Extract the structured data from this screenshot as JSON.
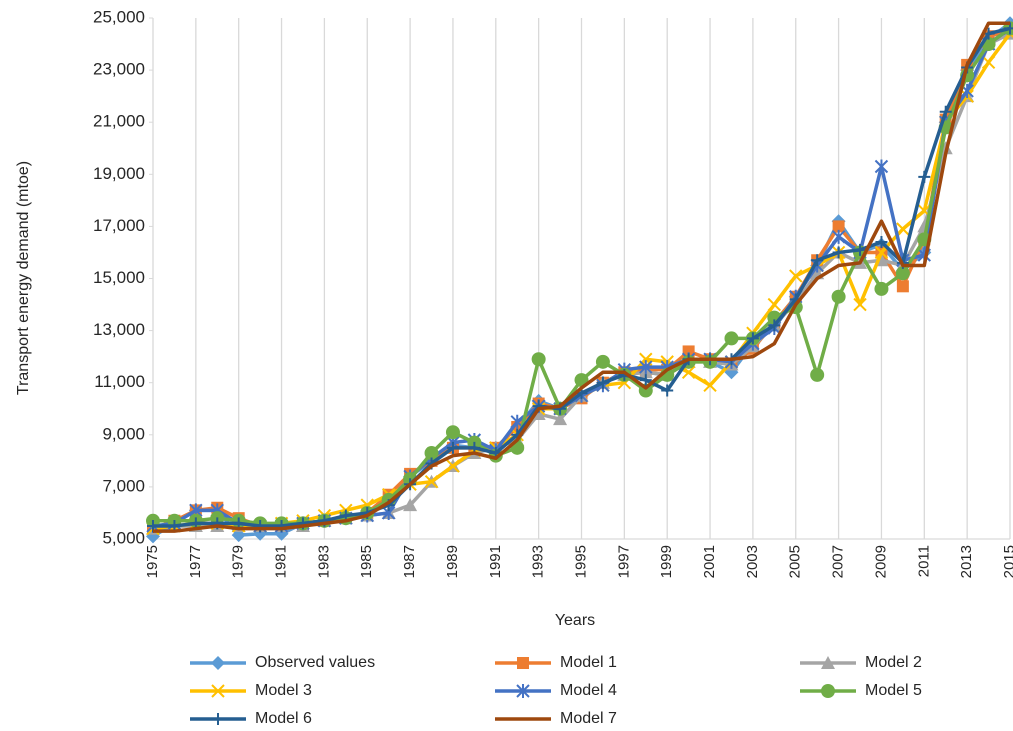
{
  "chart_data": {
    "type": "line",
    "x_label": "Years",
    "y_label": "Transport energy demand (mtoe)",
    "x": [
      1975,
      1976,
      1977,
      1978,
      1979,
      1980,
      1981,
      1982,
      1983,
      1984,
      1985,
      1986,
      1987,
      1988,
      1989,
      1990,
      1991,
      1992,
      1993,
      1994,
      1995,
      1996,
      1997,
      1998,
      1999,
      2000,
      2001,
      2002,
      2003,
      2004,
      2005,
      2006,
      2007,
      2008,
      2009,
      2010,
      2011,
      2012,
      2013,
      2014,
      2015
    ],
    "xlim": [
      1975,
      2015
    ],
    "xticks": [
      1975,
      1977,
      1979,
      1981,
      1983,
      1985,
      1987,
      1989,
      1991,
      1993,
      1995,
      1997,
      1999,
      2001,
      2003,
      2005,
      2007,
      2009,
      2011,
      2013,
      2015
    ],
    "ylim": [
      5000,
      25000
    ],
    "yticks": [
      {
        "value": 5000,
        "label": "5,000"
      },
      {
        "value": 7000,
        "label": "7,000"
      },
      {
        "value": 9000,
        "label": "9,000"
      },
      {
        "value": 11000,
        "label": "11,000"
      },
      {
        "value": 13000,
        "label": "13,000"
      },
      {
        "value": 15000,
        "label": "15,000"
      },
      {
        "value": 17000,
        "label": "17,000"
      },
      {
        "value": 19000,
        "label": "19,000"
      },
      {
        "value": 21000,
        "label": "21,000"
      },
      {
        "value": 23000,
        "label": "23,000"
      },
      {
        "value": 25000,
        "label": "25,000"
      }
    ],
    "grid": "x",
    "legend": "bottom",
    "series": [
      {
        "name": "Observed values",
        "color": "#5b9bd5",
        "marker": "diamond",
        "values": [
          5100,
          5600,
          6100,
          6100,
          5150,
          5200,
          5200,
          5600,
          5700,
          5800,
          6000,
          6600,
          7400,
          8000,
          8600,
          8500,
          8500,
          9300,
          10300,
          10000,
          10500,
          11000,
          11400,
          11400,
          11300,
          11900,
          11800,
          11400,
          12500,
          13300,
          14300,
          15500,
          17200,
          16000,
          16300,
          15300,
          16000,
          21000,
          23000,
          24200,
          24800
        ]
      },
      {
        "name": "Model 1",
        "color": "#ed7d31",
        "marker": "square",
        "values": [
          5400,
          5700,
          6100,
          6200,
          5800,
          5500,
          5500,
          5600,
          5700,
          5800,
          6000,
          6700,
          7500,
          8000,
          8500,
          8500,
          8500,
          9300,
          10200,
          10000,
          10400,
          11000,
          11400,
          11500,
          11500,
          12200,
          11900,
          11700,
          12300,
          13300,
          14300,
          15700,
          17000,
          16000,
          16000,
          14700,
          16500,
          21100,
          23200,
          24300,
          24500
        ]
      },
      {
        "name": "Model 2",
        "color": "#a5a5a5",
        "marker": "triangle",
        "values": [
          5400,
          5500,
          5500,
          5500,
          5500,
          5500,
          5500,
          5500,
          5700,
          5800,
          5900,
          6000,
          6300,
          7200,
          7800,
          8300,
          8500,
          8800,
          9800,
          9600,
          10500,
          11000,
          11300,
          11400,
          11300,
          11800,
          11800,
          11700,
          12400,
          13200,
          14100,
          15200,
          16000,
          15600,
          15700,
          15500,
          17000,
          20000,
          22000,
          24000,
          24400
        ]
      },
      {
        "name": "Model 3",
        "color": "#ffc000",
        "marker": "x",
        "values": [
          5400,
          5500,
          5600,
          5600,
          5500,
          5500,
          5600,
          5700,
          5900,
          6100,
          6300,
          6700,
          7100,
          7200,
          7800,
          8400,
          8500,
          9000,
          10000,
          10000,
          10500,
          10900,
          11000,
          11900,
          11800,
          11400,
          10900,
          11800,
          12900,
          14000,
          15100,
          15500,
          16000,
          14000,
          16000,
          16900,
          17600,
          21000,
          22000,
          23300,
          24400
        ]
      },
      {
        "name": "Model 4",
        "color": "#4472c4",
        "marker": "star",
        "values": [
          5500,
          5600,
          6100,
          6100,
          5600,
          5500,
          5500,
          5600,
          5700,
          5800,
          5900,
          6000,
          7400,
          8100,
          8700,
          8800,
          8400,
          9500,
          10100,
          10000,
          10500,
          10900,
          11500,
          11600,
          11600,
          11900,
          11900,
          11800,
          12500,
          13100,
          14300,
          15500,
          16600,
          16000,
          19300,
          15700,
          15900,
          21000,
          22200,
          24000,
          24600
        ]
      },
      {
        "name": "Model 5",
        "color": "#70ad47",
        "marker": "circle",
        "values": [
          5700,
          5700,
          5700,
          5800,
          5700,
          5600,
          5600,
          5600,
          5700,
          5800,
          6000,
          6500,
          7300,
          8300,
          9100,
          8700,
          8200,
          8500,
          11900,
          10000,
          11100,
          11800,
          11300,
          10700,
          11300,
          11800,
          11800,
          12700,
          12700,
          13500,
          13900,
          11300,
          14300,
          16000,
          14600,
          15200,
          16500,
          20800,
          22800,
          24000,
          24600
        ]
      },
      {
        "name": "Model 6",
        "color": "#255e91",
        "marker": "plus",
        "values": [
          5500,
          5500,
          5600,
          5600,
          5600,
          5500,
          5500,
          5600,
          5700,
          5900,
          6000,
          6300,
          7100,
          7900,
          8500,
          8500,
          8300,
          9000,
          10100,
          10000,
          10600,
          11000,
          11300,
          11100,
          10700,
          11900,
          11900,
          11900,
          12700,
          13200,
          14200,
          15700,
          16000,
          16100,
          16400,
          15600,
          18900,
          21400,
          23100,
          24400,
          24600
        ]
      },
      {
        "name": "Model 7",
        "color": "#9e480e",
        "marker": "none",
        "values": [
          5300,
          5300,
          5400,
          5500,
          5400,
          5400,
          5400,
          5500,
          5600,
          5700,
          5900,
          6400,
          7100,
          7800,
          8200,
          8300,
          8100,
          8800,
          10000,
          10100,
          10800,
          11400,
          11400,
          10800,
          11500,
          11900,
          11900,
          11900,
          12000,
          12500,
          14000,
          15000,
          15500,
          15600,
          17200,
          15500,
          15500,
          19800,
          23200,
          24800,
          24800
        ]
      }
    ]
  }
}
